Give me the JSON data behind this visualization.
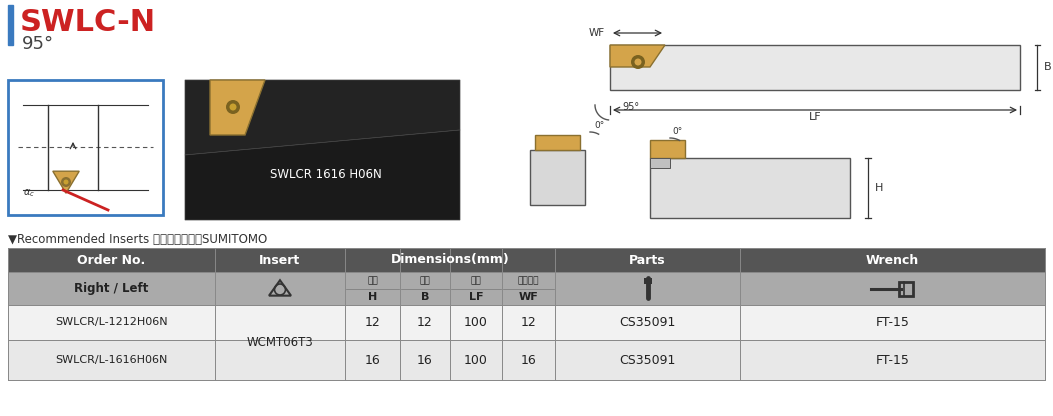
{
  "title": "SWLC-N",
  "subtitle": "95°",
  "title_color": "#cc2222",
  "accent_color": "#3a7abf",
  "bg_color": "#ffffff",
  "recommended_text": "▼Recommended Inserts 刀片建議品牌：SUMITOMO",
  "table_header_bg": "#555555",
  "table_subheader_bg": "#aaaaaa",
  "col_headers": [
    "Order No.",
    "Insert",
    "Dimensions(mm)",
    "Parts",
    "Wrench"
  ],
  "dim_subheaders_cn": [
    "柱高",
    "柱寬",
    "長度",
    "工作寬度"
  ],
  "dim_subheaders_en": [
    "H",
    "B",
    "LF",
    "WF"
  ],
  "rows": [
    [
      "SWLCR/L-1212H06N",
      "WCMT06T3",
      "12",
      "12",
      "100",
      "12",
      "CS35091",
      "FT-15"
    ],
    [
      "SWLCR/L-1616H06N",
      "WCMT06T3",
      "16",
      "16",
      "100",
      "16",
      "CS35091",
      "FT-15"
    ]
  ],
  "insert_label": "WCMT06T3"
}
